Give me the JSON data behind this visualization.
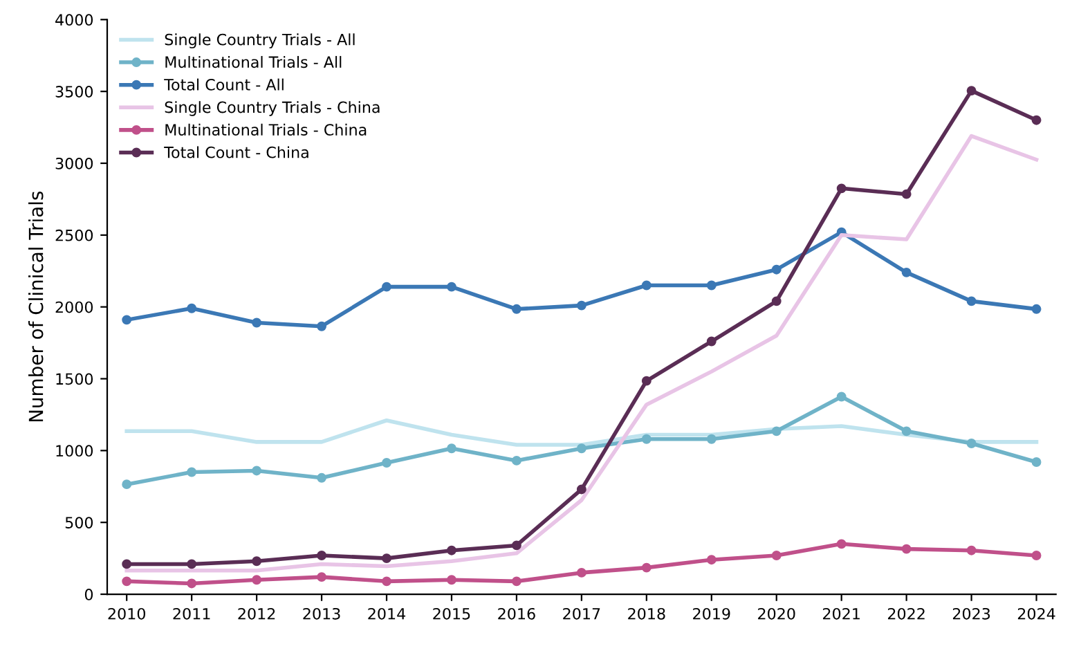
{
  "chart_data": {
    "type": "line",
    "ylabel": "Number of Clinical Trials",
    "categories": [
      "2010",
      "2011",
      "2012",
      "2013",
      "2014",
      "2015",
      "2016",
      "2017",
      "2018",
      "2019",
      "2020",
      "2021",
      "2022",
      "2023",
      "2024"
    ],
    "ylim": [
      0,
      4000
    ],
    "yticks": [
      0,
      500,
      1000,
      1500,
      2000,
      2500,
      3000,
      3500,
      4000
    ],
    "grid": false,
    "legend": "top left",
    "series": [
      {
        "name": "Single Country Trials - All",
        "color": "#bfe3ee",
        "marker": "none",
        "values": [
          1135,
          1135,
          1060,
          1060,
          1210,
          1110,
          1040,
          1040,
          1110,
          1110,
          1150,
          1170,
          1110,
          1060,
          1060
        ]
      },
      {
        "name": "Multinational Trials - All",
        "color": "#6fb3c8",
        "marker": "circle",
        "values": [
          765,
          850,
          860,
          810,
          915,
          1015,
          930,
          1015,
          1080,
          1080,
          1135,
          1375,
          1135,
          1050,
          920
        ]
      },
      {
        "name": "Total Count - All",
        "color": "#3b78b5",
        "marker": "circle",
        "values": [
          1910,
          1990,
          1890,
          1865,
          2140,
          2140,
          1985,
          2010,
          2150,
          2150,
          2260,
          2520,
          2240,
          2040,
          1985
        ]
      },
      {
        "name": "Single Country Trials - China",
        "color": "#e8c4e6",
        "marker": "none",
        "values": [
          165,
          165,
          165,
          210,
          195,
          230,
          285,
          655,
          1320,
          1550,
          1800,
          2500,
          2470,
          3190,
          3025
        ]
      },
      {
        "name": "Multinational Trials - China",
        "color": "#c0508a",
        "marker": "circle",
        "values": [
          90,
          75,
          100,
          120,
          90,
          100,
          90,
          150,
          185,
          240,
          270,
          350,
          315,
          305,
          270
        ]
      },
      {
        "name": "Total Count - China",
        "color": "#5a2d55",
        "marker": "circle",
        "values": [
          210,
          210,
          230,
          270,
          250,
          305,
          340,
          730,
          1485,
          1760,
          2040,
          2825,
          2785,
          3505,
          3300
        ]
      }
    ]
  }
}
